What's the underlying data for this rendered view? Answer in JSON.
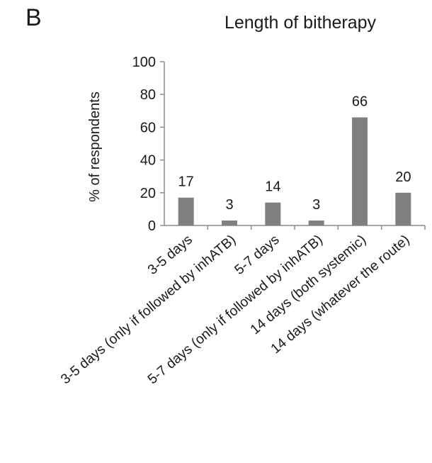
{
  "panel_label": "B",
  "chart_data": {
    "type": "bar",
    "title": "Length of bitherapy",
    "xlabel": "",
    "ylabel": "% of respondents",
    "ylim": [
      0,
      100
    ],
    "yticks": [
      0,
      20,
      40,
      60,
      80,
      100
    ],
    "grid": false,
    "categories": [
      "3-5 days",
      "3-5 days (only if followed by inhATB)",
      "5-7 days",
      "5-7 days (only if followed by inhATB)",
      "14 days (both systemic)",
      "14 days (whatever the route)"
    ],
    "values": [
      17,
      3,
      14,
      3,
      66,
      20
    ],
    "data_labels": [
      "17",
      "3",
      "14",
      "3",
      "66",
      "20"
    ],
    "bar_color": "#808080",
    "axis_color": "#8c8c8c"
  }
}
